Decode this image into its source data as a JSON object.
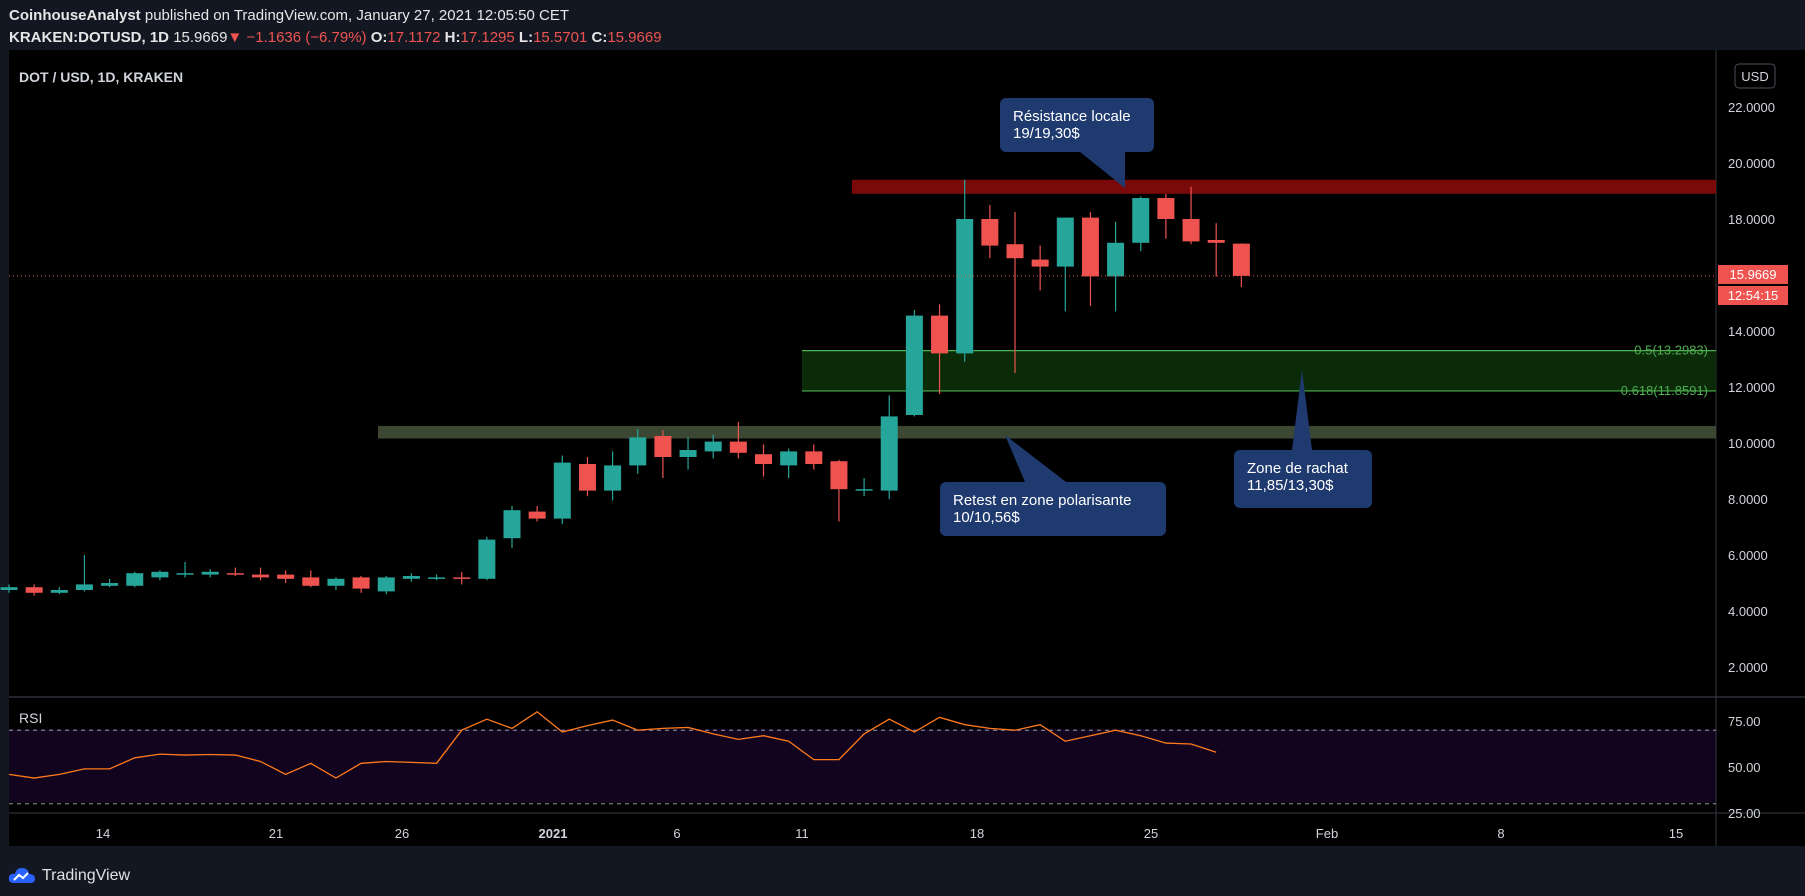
{
  "header": {
    "author": "CoinhouseAnalyst",
    "published_text": "published on TradingView.com, January 27, 2021 12:05:50 CET",
    "symbol": "KRAKEN:DOTUSD, 1D",
    "last_price": "15.9669",
    "arrow": "▼",
    "change": "−1.1636 (−6.79%)",
    "o_label": "O:",
    "o_value": "17.1172",
    "h_label": "H:",
    "h_value": "17.1295",
    "l_label": "L:",
    "l_value": "15.5701",
    "c_label": "C:",
    "c_value": "15.9669"
  },
  "chart_title": "DOT / USD, 1D, KRAKEN",
  "currency_button": "USD",
  "price_tag": "15.9669",
  "countdown_tag": "12:54:15",
  "footer": {
    "brand": "TradingView"
  },
  "colors": {
    "background": "#000000",
    "up": "#26a69a",
    "down": "#ef5350",
    "resistance_zone": "#7a0a0a",
    "support_zone": "#3b4633",
    "buy_zone": "#0a2a08",
    "fib_line": "#4caf50",
    "callout": "#1f3a6e",
    "rsi_line": "#ff7a1a"
  },
  "chart_data": {
    "type": "candlestick",
    "yaxis": {
      "ticks": [
        "22.0000",
        "20.0000",
        "18.0000",
        "16.0000",
        "14.0000",
        "12.0000",
        "10.0000",
        "8.0000",
        "6.0000",
        "4.0000",
        "2.0000"
      ]
    },
    "xaxis": {
      "ticks": [
        "14",
        "21",
        "26",
        "2021",
        "6",
        "11",
        "18",
        "25",
        "Feb",
        "8",
        "15"
      ]
    },
    "candles": [
      {
        "o": 4.75,
        "h": 4.95,
        "l": 4.65,
        "c": 4.85
      },
      {
        "o": 4.85,
        "h": 4.95,
        "l": 4.55,
        "c": 4.65
      },
      {
        "o": 4.65,
        "h": 4.85,
        "l": 4.6,
        "c": 4.75
      },
      {
        "o": 4.75,
        "h": 6.0,
        "l": 4.7,
        "c": 4.95
      },
      {
        "o": 4.9,
        "h": 5.15,
        "l": 4.85,
        "c": 5.0
      },
      {
        "o": 4.9,
        "h": 5.4,
        "l": 4.85,
        "c": 5.35
      },
      {
        "o": 5.2,
        "h": 5.45,
        "l": 5.1,
        "c": 5.4
      },
      {
        "o": 5.3,
        "h": 5.75,
        "l": 5.2,
        "c": 5.35
      },
      {
        "o": 5.3,
        "h": 5.5,
        "l": 5.2,
        "c": 5.4
      },
      {
        "o": 5.35,
        "h": 5.55,
        "l": 5.25,
        "c": 5.3
      },
      {
        "o": 5.3,
        "h": 5.55,
        "l": 5.1,
        "c": 5.2
      },
      {
        "o": 5.3,
        "h": 5.45,
        "l": 5.0,
        "c": 5.15
      },
      {
        "o": 5.2,
        "h": 5.45,
        "l": 4.85,
        "c": 4.9
      },
      {
        "o": 4.9,
        "h": 5.2,
        "l": 4.75,
        "c": 5.15
      },
      {
        "o": 5.2,
        "h": 5.25,
        "l": 4.65,
        "c": 4.8
      },
      {
        "o": 4.7,
        "h": 5.25,
        "l": 4.6,
        "c": 5.2
      },
      {
        "o": 5.15,
        "h": 5.35,
        "l": 5.05,
        "c": 5.25
      },
      {
        "o": 5.2,
        "h": 5.3,
        "l": 5.1,
        "c": 5.2
      },
      {
        "o": 5.2,
        "h": 5.4,
        "l": 4.95,
        "c": 5.15
      },
      {
        "o": 5.15,
        "h": 6.65,
        "l": 5.1,
        "c": 6.55
      },
      {
        "o": 6.6,
        "h": 7.75,
        "l": 6.25,
        "c": 7.6
      },
      {
        "o": 7.55,
        "h": 7.75,
        "l": 7.2,
        "c": 7.3
      },
      {
        "o": 7.3,
        "h": 9.55,
        "l": 7.1,
        "c": 9.3
      },
      {
        "o": 9.25,
        "h": 9.5,
        "l": 8.1,
        "c": 8.3
      },
      {
        "o": 8.3,
        "h": 9.7,
        "l": 7.95,
        "c": 9.2
      },
      {
        "o": 9.2,
        "h": 10.5,
        "l": 8.9,
        "c": 10.2
      },
      {
        "o": 10.25,
        "h": 10.45,
        "l": 8.75,
        "c": 9.5
      },
      {
        "o": 9.5,
        "h": 10.2,
        "l": 9.05,
        "c": 9.75
      },
      {
        "o": 9.7,
        "h": 10.3,
        "l": 9.45,
        "c": 10.05
      },
      {
        "o": 10.05,
        "h": 10.75,
        "l": 9.45,
        "c": 9.65
      },
      {
        "o": 9.6,
        "h": 9.95,
        "l": 8.8,
        "c": 9.25
      },
      {
        "o": 9.2,
        "h": 9.8,
        "l": 8.75,
        "c": 9.7
      },
      {
        "o": 9.7,
        "h": 9.95,
        "l": 9.05,
        "c": 9.25
      },
      {
        "o": 9.35,
        "h": 9.4,
        "l": 7.2,
        "c": 8.35
      },
      {
        "o": 8.3,
        "h": 8.75,
        "l": 8.1,
        "c": 8.35
      },
      {
        "o": 8.3,
        "h": 11.7,
        "l": 8.0,
        "c": 10.95
      },
      {
        "o": 11.0,
        "h": 14.75,
        "l": 10.95,
        "c": 14.55
      },
      {
        "o": 14.55,
        "h": 14.95,
        "l": 11.75,
        "c": 13.2
      },
      {
        "o": 13.2,
        "h": 19.4,
        "l": 12.9,
        "c": 18.0
      },
      {
        "o": 18.0,
        "h": 18.5,
        "l": 16.6,
        "c": 17.05
      },
      {
        "o": 17.1,
        "h": 18.25,
        "l": 12.5,
        "c": 16.6
      },
      {
        "o": 16.55,
        "h": 17.05,
        "l": 15.45,
        "c": 16.3
      },
      {
        "o": 16.3,
        "h": 18.05,
        "l": 14.7,
        "c": 18.05
      },
      {
        "o": 18.05,
        "h": 18.25,
        "l": 14.9,
        "c": 15.95
      },
      {
        "o": 15.95,
        "h": 17.9,
        "l": 14.7,
        "c": 17.15
      },
      {
        "o": 17.15,
        "h": 18.8,
        "l": 16.85,
        "c": 18.75
      },
      {
        "o": 18.75,
        "h": 18.9,
        "l": 17.3,
        "c": 18.0
      },
      {
        "o": 18.0,
        "h": 19.15,
        "l": 17.1,
        "c": 17.2
      },
      {
        "o": 17.25,
        "h": 17.85,
        "l": 15.95,
        "c": 17.15
      },
      {
        "o": 17.12,
        "h": 17.13,
        "l": 15.57,
        "c": 15.97
      }
    ],
    "last_price": 15.9669,
    "zones": [
      {
        "name": "resistance",
        "from": 18.9,
        "to": 19.4
      },
      {
        "name": "polarized",
        "from": 10.16,
        "to": 10.61
      },
      {
        "name": "buy",
        "from": 11.8591,
        "to": 13.2983
      }
    ],
    "fib_levels": [
      {
        "label": "0.5(13.2983)",
        "value": 13.2983
      },
      {
        "label": "0.618(11.8591)",
        "value": 11.8591
      }
    ],
    "callouts": [
      {
        "line1": "Résistance locale",
        "line2": "19/19,30$"
      },
      {
        "line1": "Retest en zone polarisante",
        "line2": "10/10,56$"
      },
      {
        "line1": "Zone de rachat",
        "line2": "11,85/13,30$"
      }
    ],
    "rsi": {
      "label": "RSI",
      "ticks": [
        "75.00",
        "50.00",
        "25.00"
      ],
      "values": [
        46,
        44,
        46,
        49,
        49,
        55,
        57,
        56.5,
        56.8,
        56.5,
        53,
        46,
        52,
        44,
        52,
        53,
        52.5,
        52,
        70,
        76,
        71,
        80,
        69,
        72.5,
        75.5,
        70,
        71,
        71.5,
        68,
        65,
        67,
        64,
        54,
        54,
        68,
        76,
        69,
        77,
        73,
        71,
        70,
        73,
        64,
        67,
        70,
        67,
        63,
        62.5,
        58
      ]
    }
  }
}
